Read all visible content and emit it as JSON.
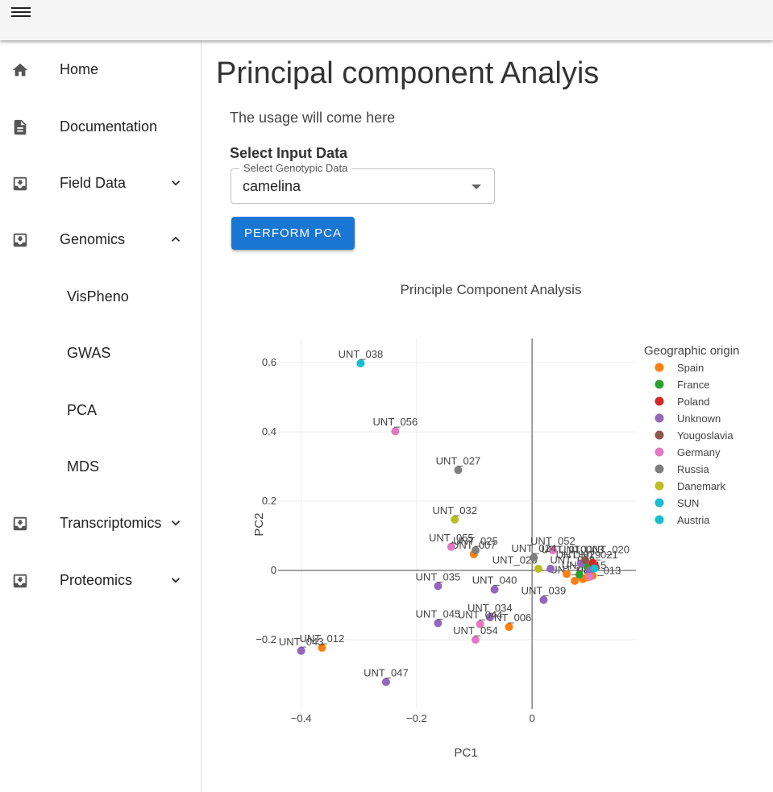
{
  "appbar": {
    "menu_icon": "hamburger-menu-icon"
  },
  "sidebar": {
    "items": [
      {
        "label": "Home",
        "icon": "home-icon",
        "chevron": ""
      },
      {
        "label": "Documentation",
        "icon": "document-icon",
        "chevron": ""
      },
      {
        "label": "Field Data",
        "icon": "inbox-download-icon",
        "chevron": "down"
      },
      {
        "label": "Genomics",
        "icon": "inbox-download-icon",
        "chevron": "up"
      },
      {
        "label": "Transcriptomics",
        "icon": "inbox-download-icon",
        "chevron": "down"
      },
      {
        "label": "Proteomics",
        "icon": "inbox-download-icon",
        "chevron": "down"
      }
    ],
    "genomics_sub": [
      {
        "label": "VisPheno"
      },
      {
        "label": "GWAS"
      },
      {
        "label": "PCA"
      },
      {
        "label": "MDS"
      }
    ]
  },
  "main": {
    "title": "Principal component Analyis",
    "usage": "The usage will come here",
    "select_heading": "Select Input Data",
    "select_label": "Select Genotypic Data",
    "select_value": "camelina",
    "button_label": "PERFORM PCA"
  },
  "chart_data": {
    "type": "scatter",
    "title": "Principle Component Analysis",
    "xlabel": "PC1",
    "ylabel": "PC2",
    "xlim": [
      -0.44,
      0.18
    ],
    "ylim": [
      -0.4,
      0.67
    ],
    "xticks": [
      -0.4,
      -0.2,
      0
    ],
    "xtick_labels": [
      "−0.4",
      "−0.2",
      "0"
    ],
    "yticks": [
      -0.2,
      0,
      0.2,
      0.4,
      0.6
    ],
    "ytick_labels": [
      "−0.2",
      "0",
      "0.2",
      "0.4",
      "0.6"
    ],
    "grid": true,
    "legend_title": "Geographic origin",
    "legend_position": "right",
    "series": [
      {
        "name": "Spain",
        "color": "#ff7f0e",
        "points": [
          {
            "label": "UNT_012",
            "x": -0.364,
            "y": -0.223
          },
          {
            "label": "UNT_006",
            "x": -0.04,
            "y": -0.163
          },
          {
            "label": "UNT_007",
            "x": -0.101,
            "y": 0.047
          },
          {
            "label": "",
            "x": 0.074,
            "y": -0.03
          },
          {
            "label": "",
            "x": 0.088,
            "y": -0.025
          },
          {
            "label": "",
            "x": 0.096,
            "y": -0.02
          },
          {
            "label": "",
            "x": 0.06,
            "y": -0.01
          },
          {
            "label": "",
            "x": 0.105,
            "y": -0.015
          }
        ]
      },
      {
        "name": "France",
        "color": "#2ca02c",
        "points": [
          {
            "label": "",
            "x": 0.082,
            "y": -0.012
          },
          {
            "label": "",
            "x": 0.095,
            "y": 0.012
          }
        ]
      },
      {
        "name": "Poland",
        "color": "#d62728",
        "points": [
          {
            "label": "",
            "x": 0.105,
            "y": 0.022
          },
          {
            "label": "",
            "x": 0.11,
            "y": 0.01
          }
        ]
      },
      {
        "name": "Unknown",
        "color": "#9467bd",
        "points": [
          {
            "label": "UNT_043",
            "x": -0.4,
            "y": -0.232
          },
          {
            "label": "UNT_047",
            "x": -0.253,
            "y": -0.322
          },
          {
            "label": "UNT_045",
            "x": -0.163,
            "y": -0.152
          },
          {
            "label": "UNT_035",
            "x": -0.163,
            "y": -0.045
          },
          {
            "label": "UNT_040",
            "x": -0.065,
            "y": -0.055
          },
          {
            "label": "UNT_039",
            "x": 0.02,
            "y": -0.085
          },
          {
            "label": "UNT_034",
            "x": -0.073,
            "y": -0.135
          },
          {
            "label": "",
            "x": 0.032,
            "y": 0.005
          },
          {
            "label": "",
            "x": 0.1,
            "y": 0.0
          },
          {
            "label": "",
            "x": 0.085,
            "y": 0.02
          }
        ]
      },
      {
        "name": "Yougoslavia",
        "color": "#8c564b",
        "points": [
          {
            "label": "",
            "x": 0.092,
            "y": 0.03
          }
        ]
      },
      {
        "name": "Germany",
        "color": "#e377c2",
        "points": [
          {
            "label": "UNT_056",
            "x": -0.237,
            "y": 0.402
          },
          {
            "label": "UNT_055",
            "x": -0.14,
            "y": 0.068
          },
          {
            "label": "UNT_044",
            "x": -0.09,
            "y": -0.155
          },
          {
            "label": "UNT_054",
            "x": -0.098,
            "y": -0.2
          },
          {
            "label": "UNT_052",
            "x": 0.036,
            "y": 0.058
          },
          {
            "label": "",
            "x": 0.1,
            "y": -0.018
          }
        ]
      },
      {
        "name": "Russia",
        "color": "#7f7f7f",
        "points": [
          {
            "label": "UNT_027",
            "x": -0.128,
            "y": 0.29
          },
          {
            "label": "UNT_025",
            "x": -0.098,
            "y": 0.058
          },
          {
            "label": "UNT_024",
            "x": 0.003,
            "y": 0.037
          }
        ]
      },
      {
        "name": "Danemark",
        "color": "#bcbd22",
        "points": [
          {
            "label": "UNT_032",
            "x": -0.134,
            "y": 0.147
          },
          {
            "label": "",
            "x": 0.011,
            "y": 0.005
          }
        ]
      },
      {
        "name": "SUN",
        "color": "#17becf",
        "points": [
          {
            "label": "UNT_038",
            "x": -0.297,
            "y": 0.598
          }
        ]
      },
      {
        "name": "Austria",
        "color": "#17becf",
        "points": [
          {
            "label": "",
            "x": 0.108,
            "y": 0.006
          }
        ]
      }
    ],
    "cluster_labels": [
      {
        "text": "UNT_026",
        "x": -0.03,
        "y": 0.02
      },
      {
        "text": "UNT_018",
        "x": 0.07,
        "y": 0.02
      },
      {
        "text": "UNT_020",
        "x": 0.13,
        "y": 0.05
      },
      {
        "text": "UNT_021",
        "x": 0.11,
        "y": 0.035
      },
      {
        "text": "UNT_029",
        "x": 0.08,
        "y": 0.035
      },
      {
        "text": "UNT_015",
        "x": 0.09,
        "y": 0.005
      },
      {
        "text": "UNT_033",
        "x": 0.07,
        "y": -0.008
      },
      {
        "text": "UNT_013",
        "x": 0.115,
        "y": -0.01
      },
      {
        "text": "UNT_010",
        "x": 0.055,
        "y": 0.05
      },
      {
        "text": "UNT_003",
        "x": 0.085,
        "y": 0.05
      }
    ]
  }
}
